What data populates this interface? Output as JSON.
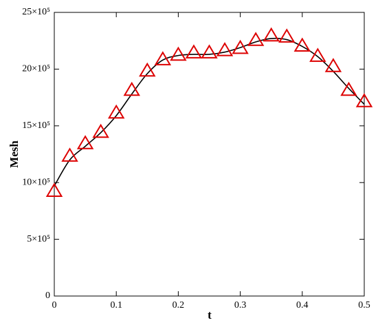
{
  "chart_data": {
    "type": "line",
    "x_label": "t",
    "y_label": "Mesh",
    "xlim": [
      0,
      0.5
    ],
    "xticks": [
      0,
      0.1,
      0.2,
      0.3,
      0.4,
      0.5
    ],
    "ylim": [
      0,
      2500000
    ],
    "yticks": [
      0,
      {
        "value": 500000,
        "label": "5×10⁵"
      },
      {
        "value": 1000000,
        "label": "10×10⁵"
      },
      {
        "value": 1500000,
        "label": "15×10⁵"
      },
      {
        "value": 2000000,
        "label": "20×10⁵"
      },
      {
        "value": 2500000,
        "label": "25×10⁵"
      }
    ],
    "x": [
      0,
      0.025,
      0.05,
      0.075,
      0.1,
      0.125,
      0.15,
      0.175,
      0.2,
      0.225,
      0.25,
      0.275,
      0.3,
      0.325,
      0.35,
      0.375,
      0.4,
      0.425,
      0.45,
      0.475,
      0.5
    ],
    "series": [
      {
        "color": "#000000",
        "marker": "none",
        "values": [
          970000,
          1200000,
          1320000,
          1440000,
          1590000,
          1780000,
          1960000,
          2080000,
          2120000,
          2130000,
          2130000,
          2150000,
          2190000,
          2240000,
          2270000,
          2260000,
          2200000,
          2110000,
          1980000,
          1830000,
          1690000
        ]
      },
      {
        "color": "#dd0000",
        "marker": "triangle",
        "values": [
          920000,
          1230000,
          1340000,
          1440000,
          1610000,
          1810000,
          1980000,
          2080000,
          2120000,
          2140000,
          2140000,
          2160000,
          2180000,
          2250000,
          2290000,
          2280000,
          2200000,
          2110000,
          2020000,
          1810000,
          1710000
        ]
      }
    ]
  }
}
